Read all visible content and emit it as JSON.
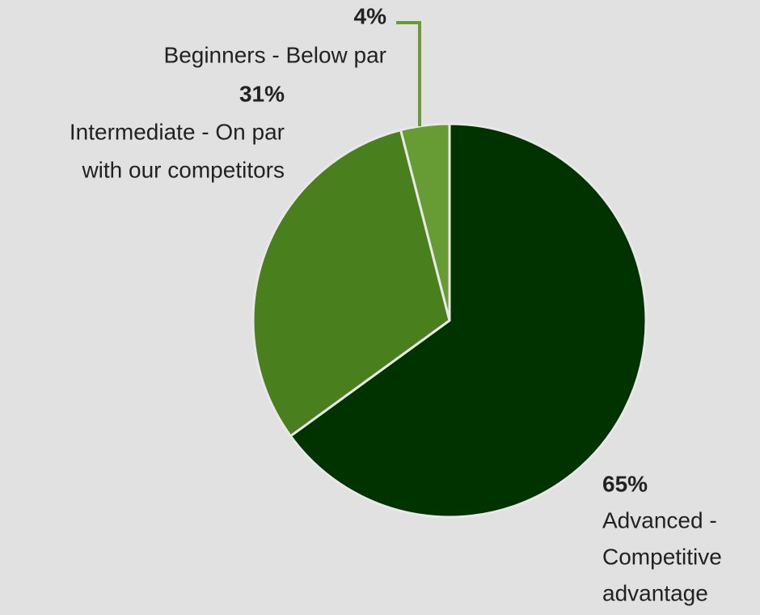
{
  "chart_data": {
    "type": "pie",
    "categories": [
      [
        "Advanced -",
        "Competitive",
        "advantage"
      ],
      [
        "Intermediate - On par",
        "with our competitors"
      ],
      [
        "Beginners - Below par"
      ]
    ],
    "values": [
      65,
      31,
      4
    ],
    "value_labels": [
      "65%",
      "31%",
      "4%"
    ],
    "colors": [
      "#003300",
      "#4a7f1e",
      "#679c34"
    ]
  }
}
